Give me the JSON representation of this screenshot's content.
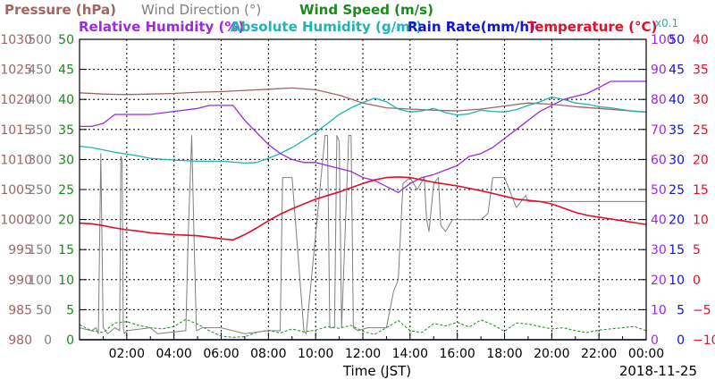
{
  "chart_data": {
    "type": "line",
    "date": "2018-11-25",
    "x_axis": {
      "label": "Time (JST)",
      "ticks": [
        "02:00",
        "04:00",
        "06:00",
        "08:00",
        "10:00",
        "12:00",
        "14:00",
        "16:00",
        "18:00",
        "20:00",
        "22:00",
        "00:00"
      ],
      "range_hours": [
        0,
        24
      ]
    },
    "legend": [
      {
        "key": "pressure",
        "label": "Pressure (hPa)",
        "color": "#a06565"
      },
      {
        "key": "wind_direction",
        "label": "Wind Direction (°)",
        "color": "#808080"
      },
      {
        "key": "wind_speed",
        "label": "Wind Speed (m/s)",
        "color": "#1b8a1b"
      },
      {
        "key": "relative_humidity",
        "label": "Relative Humidity (%)",
        "color": "#9b2be0"
      },
      {
        "key": "absolute_humidity",
        "label": "Absolute Humidity (g/m³)",
        "color": "#1fb3b3"
      },
      {
        "key": "rain_rate",
        "label": "Rain Rate(mm/h)",
        "color": "#1414d6"
      },
      {
        "key": "temperature",
        "label": "Temperature (°C)",
        "color": "#e0102a"
      }
    ],
    "legend_note": "x0.1",
    "axes": [
      {
        "key": "pressure",
        "side": "left",
        "color": "#a06565",
        "range": [
          980,
          1030
        ],
        "ticks": [
          "980",
          "985",
          "990",
          "995",
          "1000",
          "1005",
          "1010",
          "1015",
          "1020",
          "1025",
          "1030"
        ]
      },
      {
        "key": "wind_direction",
        "side": "left",
        "color": "#808080",
        "range": [
          0,
          500
        ],
        "ticks": [
          "0",
          "50",
          "100",
          "150",
          "200",
          "250",
          "300",
          "350",
          "400",
          "450",
          "500"
        ]
      },
      {
        "key": "wind_speed",
        "side": "left",
        "color": "#1b8a1b",
        "range": [
          0,
          50
        ],
        "ticks": [
          "0",
          "5",
          "10",
          "15",
          "20",
          "25",
          "30",
          "35",
          "40",
          "45",
          "50"
        ]
      },
      {
        "key": "relative_humidity",
        "side": "right",
        "color": "#9b2be0",
        "range": [
          0,
          100
        ],
        "ticks": [
          "0",
          "10",
          "20",
          "30",
          "40",
          "50",
          "60",
          "70",
          "80",
          "90",
          "100"
        ]
      },
      {
        "key": "rain_rate",
        "side": "right",
        "color": "#1414d6",
        "range": [
          0,
          50
        ],
        "ticks": [
          "0",
          "5",
          "10",
          "15",
          "20",
          "25",
          "30",
          "35",
          "40",
          "45",
          "50"
        ]
      },
      {
        "key": "temperature",
        "side": "right",
        "color": "#e0102a",
        "range": [
          -10,
          40
        ],
        "ticks": [
          "−10",
          "−5",
          "0",
          "5",
          "10",
          "15",
          "20",
          "25",
          "30",
          "35",
          "40"
        ]
      }
    ],
    "grid": true,
    "series": {
      "pressure": {
        "x": [
          0,
          1,
          2,
          3,
          4,
          5,
          6,
          7,
          8,
          9,
          10,
          11,
          12,
          13,
          14,
          15,
          16,
          17,
          18,
          19,
          20,
          21,
          22,
          23,
          24
        ],
        "y": [
          1021.1,
          1020.9,
          1020.8,
          1020.9,
          1021.0,
          1021.2,
          1021.3,
          1021.5,
          1021.7,
          1021.9,
          1021.6,
          1020.7,
          1019.4,
          1018.6,
          1018.4,
          1018.2,
          1018.1,
          1018.4,
          1018.9,
          1019.4,
          1019.2,
          1018.8,
          1018.5,
          1018.2,
          1017.9
        ]
      },
      "wind_direction": {
        "x": [
          0,
          0.5,
          0.7,
          0.8,
          0.9,
          1.0,
          1.2,
          1.5,
          1.7,
          1.75,
          1.8,
          1.85,
          1.9,
          2.0,
          3.0,
          3.3,
          4.5,
          4.6,
          4.75,
          4.85,
          4.95,
          5.2,
          6.0,
          7.0,
          8.0,
          8.5,
          8.6,
          8.8,
          9.0,
          9.5,
          9.6,
          10.4,
          10.5,
          10.6,
          10.8,
          10.9,
          11.0,
          11.1,
          11.4,
          11.5,
          11.6,
          11.8,
          12.2,
          12.7,
          13.0,
          13.3,
          13.5,
          13.7,
          14.0,
          14.3,
          14.6,
          14.7,
          14.8,
          15.0,
          15.2,
          15.3,
          15.5,
          15.8,
          16.0,
          17.0,
          17.3,
          17.5,
          17.6,
          17.8,
          18.0,
          18.5,
          18.9,
          19.0,
          19.5,
          20.0,
          21.0,
          22.0,
          23.0,
          24.0
        ],
        "y": [
          20,
          15,
          20,
          10,
          310,
          20,
          10,
          20,
          15,
          305,
          300,
          20,
          10,
          15,
          20,
          10,
          15,
          170,
          340,
          170,
          15,
          20,
          20,
          10,
          15,
          15,
          270,
          270,
          270,
          15,
          10,
          340,
          340,
          20,
          20,
          340,
          330,
          20,
          340,
          340,
          20,
          15,
          20,
          20,
          20,
          80,
          100,
          260,
          270,
          250,
          270,
          200,
          180,
          260,
          270,
          190,
          180,
          200,
          200,
          200,
          210,
          270,
          270,
          270,
          270,
          220,
          240,
          230,
          230,
          230,
          230,
          230,
          230,
          230
        ]
      },
      "wind_speed": {
        "x": [
          0,
          0.5,
          1.0,
          1.5,
          2.0,
          2.5,
          3.0,
          3.5,
          4.0,
          4.5,
          5.0,
          5.5,
          6.0,
          6.5,
          7.0,
          7.5,
          8.0,
          8.5,
          9.0,
          9.5,
          10.0,
          10.5,
          11.0,
          11.5,
          12.0,
          12.5,
          13.0,
          13.5,
          14.0,
          14.5,
          15.0,
          15.5,
          16.0,
          16.5,
          17.0,
          17.5,
          18.0,
          18.5,
          19.0,
          19.5,
          20.0,
          20.5,
          21.0,
          21.5,
          22.0,
          22.5,
          23.0,
          23.5,
          24.0
        ],
        "y": [
          2.5,
          1.5,
          1.2,
          2.8,
          3.0,
          2.4,
          2.0,
          1.8,
          2.2,
          3.4,
          2.6,
          1.5,
          0.6,
          0.4,
          0.5,
          1.2,
          1.6,
          1.1,
          1.8,
          1.3,
          1.6,
          2.2,
          1.9,
          2.4,
          1.4,
          0.9,
          2.0,
          3.2,
          1.5,
          1.2,
          2.7,
          2.3,
          2.9,
          2.1,
          3.3,
          2.5,
          1.4,
          2.8,
          2.6,
          2.2,
          1.8,
          2.0,
          1.5,
          1.2,
          1.6,
          1.8,
          2.0,
          2.2,
          1.5
        ]
      },
      "relative_humidity": {
        "x": [
          0,
          0.5,
          1.0,
          1.5,
          2.0,
          3.0,
          4.0,
          5.0,
          5.5,
          6.0,
          6.5,
          7.0,
          7.5,
          8.0,
          8.5,
          9.0,
          9.5,
          10.0,
          10.5,
          11.0,
          11.5,
          12.0,
          12.5,
          13.0,
          13.5,
          14.0,
          14.5,
          15.0,
          16.0,
          16.5,
          17.0,
          17.5,
          18.0,
          18.5,
          19.0,
          19.5,
          20.0,
          20.5,
          21.0,
          21.5,
          22.0,
          22.5,
          23.0,
          23.5,
          24.0
        ],
        "y": [
          71,
          71,
          72,
          75,
          75,
          75,
          76,
          77,
          78,
          78,
          78,
          73,
          69,
          65,
          62,
          60,
          59,
          59,
          58,
          57,
          56,
          54,
          53,
          51,
          49,
          52,
          54,
          55,
          58,
          61,
          62,
          64,
          67,
          70,
          73,
          76,
          78,
          80,
          81,
          82,
          84,
          86,
          86,
          86,
          86
        ]
      },
      "absolute_humidity": {
        "x": [
          0,
          0.5,
          1.0,
          1.5,
          2.0,
          2.5,
          3.0,
          4.0,
          5.0,
          6.0,
          7.0,
          7.5,
          8.0,
          8.5,
          9.0,
          9.5,
          10.0,
          10.5,
          11.0,
          11.5,
          12.0,
          12.5,
          13.0,
          13.5,
          14.0,
          14.5,
          15.0,
          15.5,
          16.0,
          16.5,
          17.0,
          17.5,
          18.0,
          18.5,
          19.0,
          19.5,
          20.0,
          20.5,
          21.0,
          21.5,
          22.0,
          22.5,
          23.0,
          23.5,
          24.0
        ],
        "y": [
          32.2,
          32.0,
          31.6,
          31.2,
          30.9,
          30.6,
          30.2,
          29.9,
          29.7,
          29.7,
          29.4,
          29.5,
          30.2,
          31.0,
          32.0,
          33.2,
          34.5,
          36.0,
          37.5,
          38.6,
          39.5,
          40.2,
          39.6,
          38.4,
          37.9,
          38.1,
          38.5,
          37.8,
          37.4,
          37.6,
          38.2,
          38.0,
          37.9,
          38.3,
          39.0,
          39.6,
          40.4,
          40.0,
          39.4,
          39.2,
          38.8,
          38.6,
          38.3,
          38.0,
          37.9
        ]
      },
      "rain_rate": {
        "x": [
          0,
          24
        ],
        "y": [
          0,
          0
        ]
      },
      "temperature": {
        "x": [
          0,
          0.5,
          1.0,
          1.5,
          2.0,
          2.5,
          3.0,
          4.0,
          5.0,
          6.0,
          6.5,
          7.0,
          7.5,
          8.0,
          8.5,
          9.0,
          9.5,
          10.0,
          10.5,
          11.0,
          11.5,
          12.0,
          12.5,
          13.0,
          13.5,
          14.0,
          14.5,
          15.0,
          16.0,
          17.0,
          18.0,
          18.5,
          19.0,
          19.5,
          20.0,
          20.5,
          21.0,
          21.5,
          22.0,
          22.5,
          23.0,
          23.5,
          24.0
        ],
        "y": [
          9.4,
          9.3,
          9.0,
          8.6,
          8.3,
          8.1,
          7.8,
          7.5,
          7.3,
          6.8,
          6.6,
          7.5,
          8.6,
          9.8,
          10.9,
          11.8,
          12.6,
          13.4,
          14.0,
          14.6,
          15.3,
          16.0,
          16.6,
          17.0,
          17.1,
          17.0,
          16.6,
          16.2,
          15.6,
          14.8,
          13.9,
          13.4,
          13.2,
          13.0,
          12.6,
          11.9,
          11.2,
          10.7,
          10.4,
          10.1,
          9.8,
          9.5,
          9.2
        ]
      }
    }
  }
}
